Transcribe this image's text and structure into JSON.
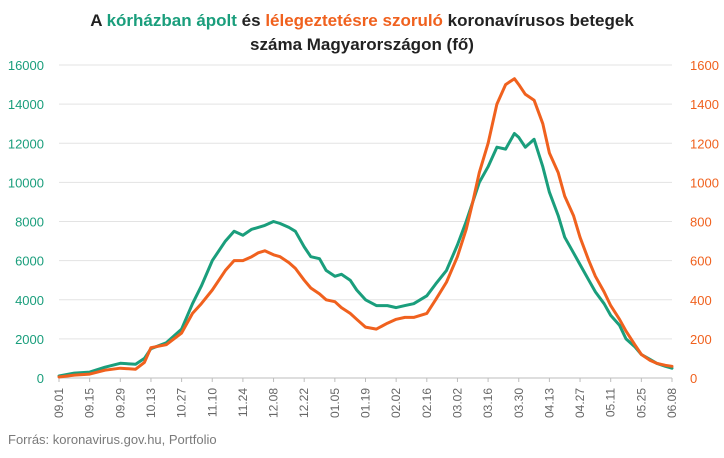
{
  "title": {
    "prefix": "A ",
    "highlight_green": "kórházban ápolt",
    "connector": " és ",
    "highlight_orange": "lélegeztetésre szoruló",
    "suffix": " koronavírusos betegek",
    "line2": "száma Magyarországon  (fő)"
  },
  "source": "Forrás: koronavirus.gov.hu, Portfolio",
  "colors": {
    "hospitalized": "#1a9e7c",
    "ventilated": "#f0611e",
    "text": "#222222",
    "grid": "#e3e3e3"
  },
  "chart_data": {
    "type": "line",
    "title": "A kórházban ápolt és lélegeztetésre szoruló koronavírusos betegek száma Magyarországon  (fő)",
    "x_ticks": [
      "09.01",
      "09.15",
      "09.29",
      "10.13",
      "10.27",
      "11.10",
      "11.24",
      "12.08",
      "12.22",
      "01.05",
      "01.19",
      "02.02",
      "02.16",
      "03.02",
      "03.16",
      "03.30",
      "04.13",
      "04.27",
      "05.11",
      "05.25",
      "06.08"
    ],
    "y_left": {
      "ticks": [
        0,
        2000,
        4000,
        6000,
        8000,
        10000,
        12000,
        14000,
        16000
      ],
      "ylim": [
        0,
        16000
      ]
    },
    "y_right": {
      "ticks": [
        0,
        200,
        400,
        600,
        800,
        1000,
        1200,
        1400,
        1600
      ],
      "ylim": [
        0,
        1600
      ]
    },
    "grid": true,
    "legend": "in title",
    "series": [
      {
        "name": "kórházban ápolt",
        "axis": "left",
        "points": [
          [
            "09.01",
            100
          ],
          [
            "09.08",
            250
          ],
          [
            "09.15",
            300
          ],
          [
            "09.22",
            550
          ],
          [
            "09.29",
            750
          ],
          [
            "10.06",
            700
          ],
          [
            "10.10",
            1000
          ],
          [
            "10.13",
            1500
          ],
          [
            "10.20",
            1800
          ],
          [
            "10.27",
            2500
          ],
          [
            "11.01",
            3800
          ],
          [
            "11.05",
            4700
          ],
          [
            "11.10",
            6000
          ],
          [
            "11.16",
            7000
          ],
          [
            "11.20",
            7500
          ],
          [
            "11.24",
            7300
          ],
          [
            "11.28",
            7600
          ],
          [
            "12.01",
            7700
          ],
          [
            "12.04",
            7800
          ],
          [
            "12.08",
            8000
          ],
          [
            "12.11",
            7900
          ],
          [
            "12.15",
            7700
          ],
          [
            "12.18",
            7500
          ],
          [
            "12.22",
            6700
          ],
          [
            "12.25",
            6200
          ],
          [
            "12.29",
            6100
          ],
          [
            "01.01",
            5500
          ],
          [
            "01.05",
            5200
          ],
          [
            "01.08",
            5300
          ],
          [
            "01.12",
            5000
          ],
          [
            "01.15",
            4500
          ],
          [
            "01.19",
            4000
          ],
          [
            "01.24",
            3700
          ],
          [
            "01.29",
            3700
          ],
          [
            "02.02",
            3600
          ],
          [
            "02.06",
            3700
          ],
          [
            "02.10",
            3800
          ],
          [
            "02.16",
            4200
          ],
          [
            "02.20",
            4800
          ],
          [
            "02.25",
            5500
          ],
          [
            "03.02",
            6800
          ],
          [
            "03.06",
            8000
          ],
          [
            "03.09",
            9000
          ],
          [
            "03.12",
            10000
          ],
          [
            "03.16",
            10800
          ],
          [
            "03.20",
            11800
          ],
          [
            "03.24",
            11700
          ],
          [
            "03.28",
            12500
          ],
          [
            "03.30",
            12300
          ],
          [
            "04.02",
            11800
          ],
          [
            "04.06",
            12200
          ],
          [
            "04.10",
            10800
          ],
          [
            "04.13",
            9500
          ],
          [
            "04.17",
            8300
          ],
          [
            "04.20",
            7200
          ],
          [
            "04.24",
            6400
          ],
          [
            "04.27",
            5800
          ],
          [
            "05.01",
            5000
          ],
          [
            "05.04",
            4400
          ],
          [
            "05.08",
            3800
          ],
          [
            "05.11",
            3200
          ],
          [
            "05.15",
            2700
          ],
          [
            "05.18",
            2000
          ],
          [
            "05.22",
            1600
          ],
          [
            "05.25",
            1200
          ],
          [
            "05.29",
            950
          ],
          [
            "06.01",
            750
          ],
          [
            "06.05",
            600
          ],
          [
            "06.08",
            500
          ]
        ]
      },
      {
        "name": "lélegeztetésre szoruló",
        "axis": "right",
        "points": [
          [
            "09.01",
            5
          ],
          [
            "09.08",
            15
          ],
          [
            "09.15",
            20
          ],
          [
            "09.22",
            40
          ],
          [
            "09.29",
            50
          ],
          [
            "10.06",
            45
          ],
          [
            "10.10",
            80
          ],
          [
            "10.13",
            155
          ],
          [
            "10.20",
            170
          ],
          [
            "10.27",
            230
          ],
          [
            "11.01",
            330
          ],
          [
            "11.05",
            380
          ],
          [
            "11.10",
            450
          ],
          [
            "11.16",
            550
          ],
          [
            "11.20",
            600
          ],
          [
            "11.24",
            600
          ],
          [
            "11.28",
            620
          ],
          [
            "12.01",
            640
          ],
          [
            "12.04",
            650
          ],
          [
            "12.08",
            630
          ],
          [
            "12.11",
            620
          ],
          [
            "12.15",
            590
          ],
          [
            "12.18",
            560
          ],
          [
            "12.22",
            500
          ],
          [
            "12.25",
            460
          ],
          [
            "12.29",
            430
          ],
          [
            "01.01",
            400
          ],
          [
            "01.05",
            390
          ],
          [
            "01.08",
            360
          ],
          [
            "01.12",
            330
          ],
          [
            "01.15",
            300
          ],
          [
            "01.19",
            260
          ],
          [
            "01.24",
            250
          ],
          [
            "01.29",
            280
          ],
          [
            "02.02",
            300
          ],
          [
            "02.06",
            310
          ],
          [
            "02.10",
            310
          ],
          [
            "02.16",
            330
          ],
          [
            "02.20",
            400
          ],
          [
            "02.25",
            490
          ],
          [
            "03.02",
            620
          ],
          [
            "03.06",
            760
          ],
          [
            "03.09",
            900
          ],
          [
            "03.12",
            1050
          ],
          [
            "03.16",
            1200
          ],
          [
            "03.20",
            1400
          ],
          [
            "03.24",
            1500
          ],
          [
            "03.28",
            1530
          ],
          [
            "03.30",
            1500
          ],
          [
            "04.02",
            1450
          ],
          [
            "04.06",
            1420
          ],
          [
            "04.10",
            1300
          ],
          [
            "04.13",
            1150
          ],
          [
            "04.17",
            1050
          ],
          [
            "04.20",
            930
          ],
          [
            "04.24",
            830
          ],
          [
            "04.27",
            720
          ],
          [
            "05.01",
            600
          ],
          [
            "05.04",
            520
          ],
          [
            "05.08",
            440
          ],
          [
            "05.11",
            370
          ],
          [
            "05.15",
            300
          ],
          [
            "05.18",
            240
          ],
          [
            "05.22",
            170
          ],
          [
            "05.25",
            120
          ],
          [
            "05.29",
            90
          ],
          [
            "06.01",
            75
          ],
          [
            "06.05",
            65
          ],
          [
            "06.08",
            60
          ]
        ]
      }
    ]
  }
}
